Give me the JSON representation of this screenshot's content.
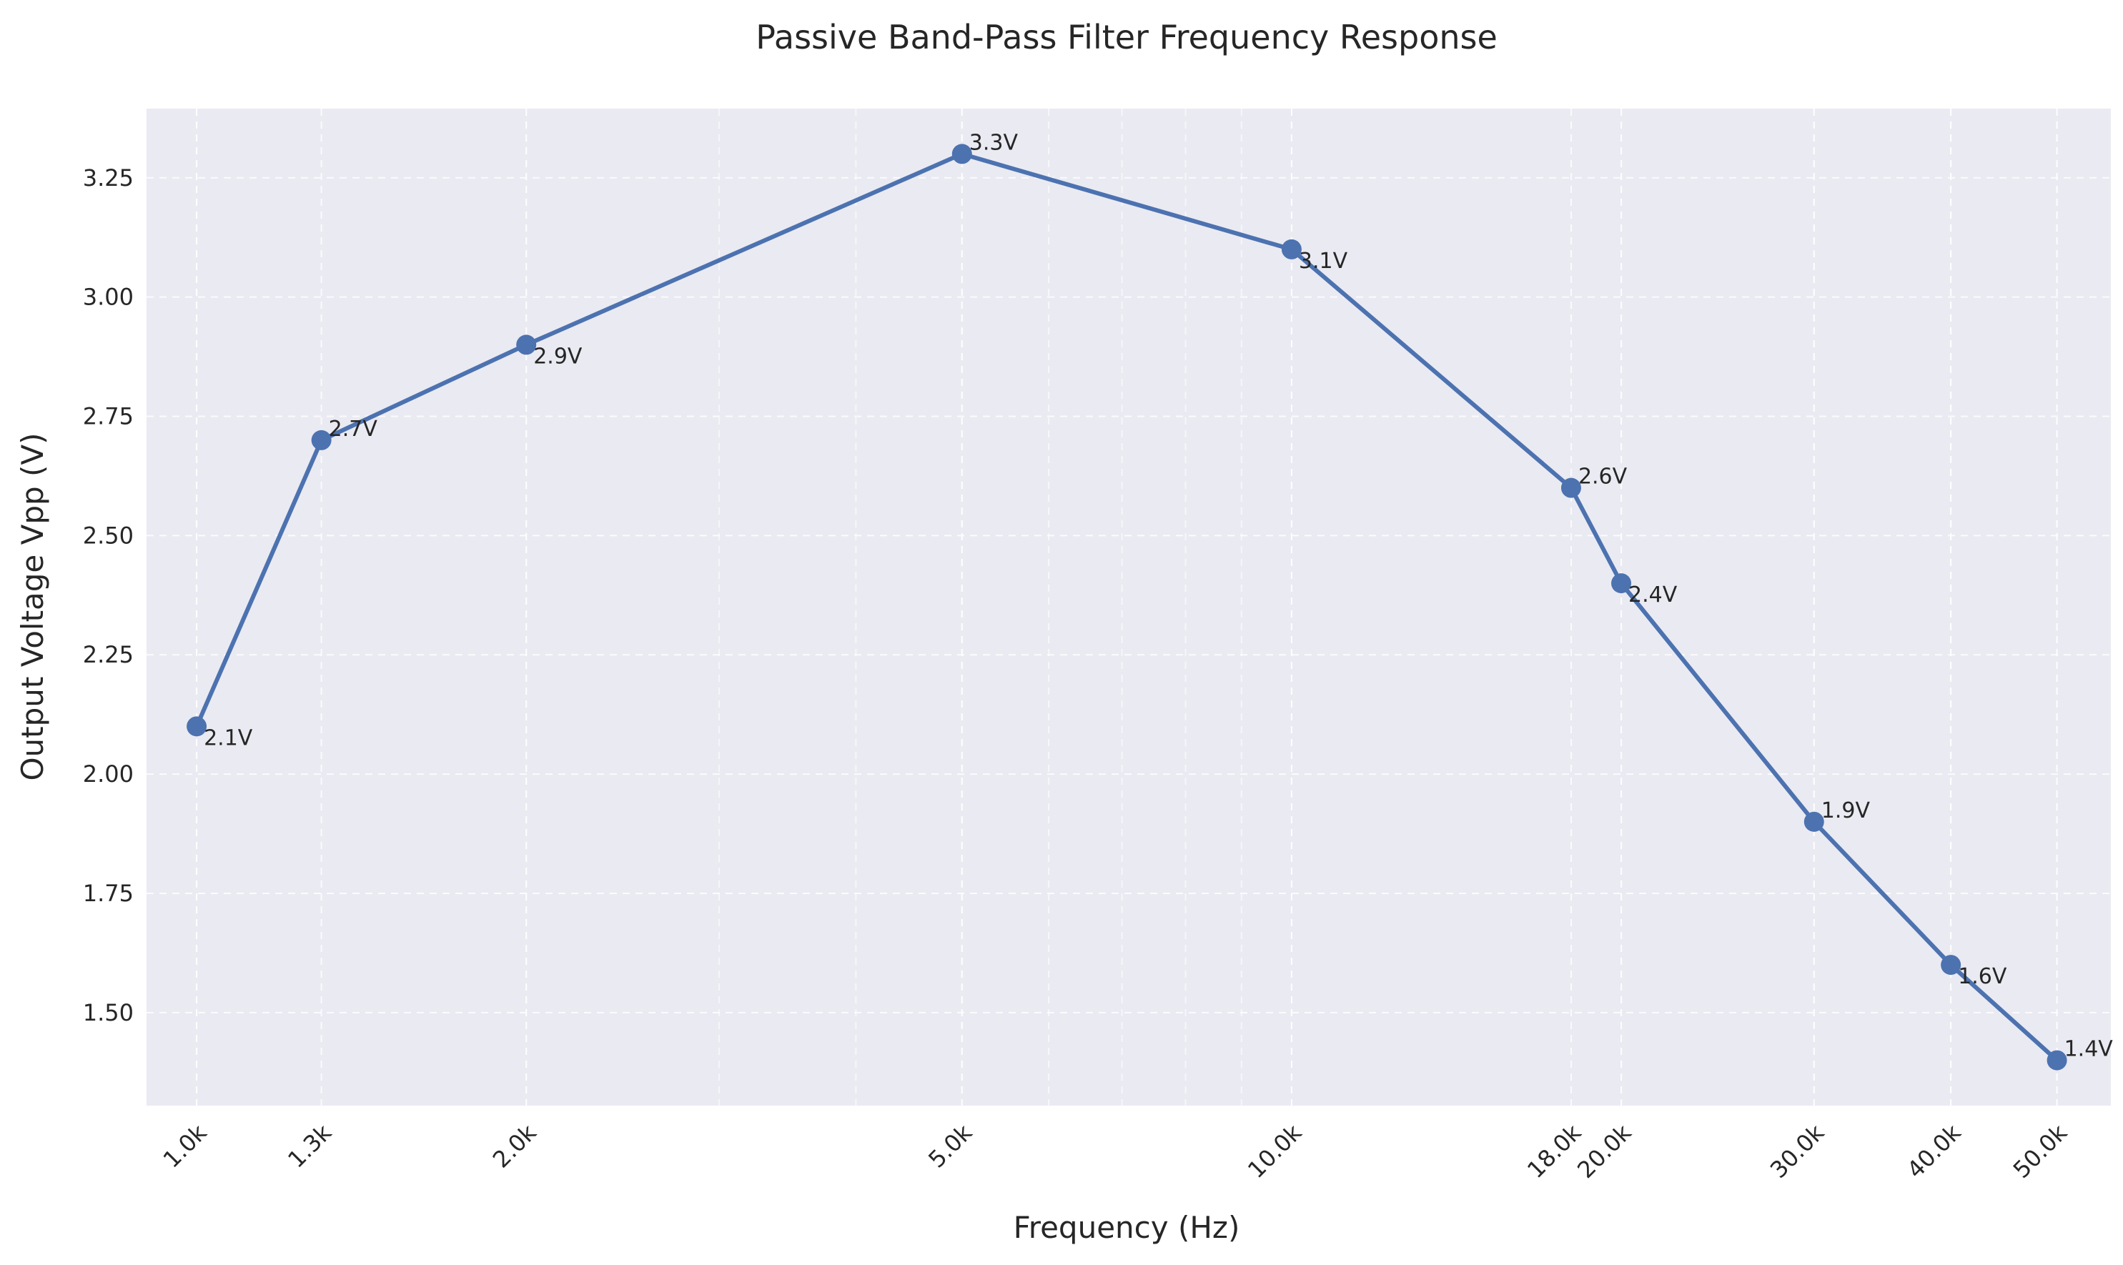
{
  "chart_data": {
    "type": "line",
    "title": "Passive Band-Pass Filter Frequency Response",
    "xlabel": "Frequency (Hz)",
    "ylabel": "Output Voltage Vpp (V)",
    "x_scale": "log",
    "xlim": [
      900,
      56000
    ],
    "ylim": [
      1.305,
      3.395
    ],
    "grid": true,
    "series": [
      {
        "x": [
          1000,
          1300,
          2000,
          5000,
          10000,
          18000,
          20000,
          30000,
          40000,
          50000
        ],
        "values": [
          2.1,
          2.7,
          2.9,
          3.3,
          3.1,
          2.6,
          2.4,
          1.9,
          1.6,
          1.4
        ],
        "color": "#4c72b0"
      }
    ],
    "x_tick_labels": [
      "1.0k",
      "1.3k",
      "2.0k",
      "5.0k",
      "10.0k",
      "18.0k",
      "20.0k",
      "30.0k",
      "40.0k",
      "50.0k"
    ],
    "y_ticks": [
      1.5,
      1.75,
      2.0,
      2.25,
      2.5,
      2.75,
      3.0,
      3.25
    ],
    "y_tick_labels": [
      "1.50",
      "1.75",
      "2.00",
      "2.25",
      "2.50",
      "2.75",
      "3.00",
      "3.25"
    ],
    "data_labels": [
      "2.1V",
      "2.7V",
      "2.9V",
      "3.3V",
      "3.1V",
      "2.6V",
      "2.4V",
      "1.9V",
      "1.6V",
      "1.4V"
    ],
    "plot_background": "#eaeaf2",
    "grid_color": "#ffffff"
  }
}
